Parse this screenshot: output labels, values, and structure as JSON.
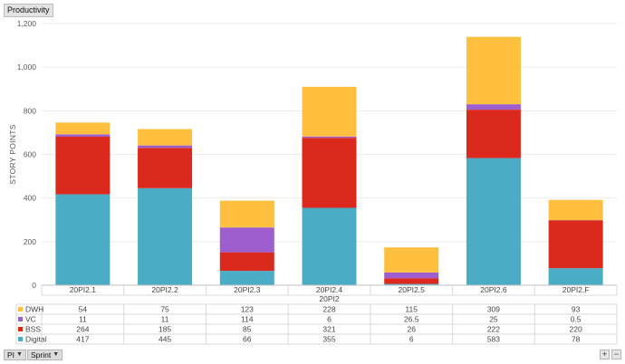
{
  "header": {
    "title_button": "Productivity"
  },
  "chart_data": {
    "type": "bar",
    "stacked": true,
    "categories": [
      "20PI2.1",
      "20PI2.2",
      "20PI2.3",
      "20PI2.4",
      "20PI2.5",
      "20PI2.6",
      "20PI2.F"
    ],
    "group_label": "20PI2",
    "ylabel": "STORY POINTS",
    "ylim": [
      0,
      1200
    ],
    "yticks": [
      0,
      200,
      400,
      600,
      800,
      1000,
      1200
    ],
    "ytick_labels": [
      "0",
      "200",
      "400",
      "600",
      "800",
      "1,000",
      "1,200"
    ],
    "grid": true,
    "series": [
      {
        "name": "Digital",
        "color": "#4bacc6",
        "values": [
          417,
          445,
          66,
          355,
          6,
          583,
          78
        ],
        "labels": [
          "417",
          "445",
          "66",
          "355",
          "6",
          "583",
          "78"
        ]
      },
      {
        "name": "BSS",
        "color": "#dc291e",
        "values": [
          264,
          185,
          85,
          321,
          26,
          222,
          220
        ],
        "labels": [
          "264",
          "185",
          "85",
          "321",
          "26",
          "222",
          "220"
        ]
      },
      {
        "name": "VC",
        "color": "#9e5ece",
        "values": [
          11,
          11,
          114,
          6,
          26.5,
          25,
          0.5
        ],
        "labels": [
          "11",
          "11",
          "114",
          "6",
          "26.5",
          "25",
          "0.5"
        ]
      },
      {
        "name": "DWH",
        "color": "#ffc040",
        "values": [
          54,
          75,
          123,
          228,
          115,
          309,
          93
        ],
        "labels": [
          "54",
          "75",
          "123",
          "228",
          "115",
          "309",
          "93"
        ]
      }
    ],
    "table_row_order": [
      "DWH",
      "VC",
      "BSS",
      "Digital"
    ]
  },
  "footer": {
    "filter_pi": "PI",
    "filter_sprint": "Sprint",
    "zoom_in": "+",
    "zoom_out": "−"
  }
}
